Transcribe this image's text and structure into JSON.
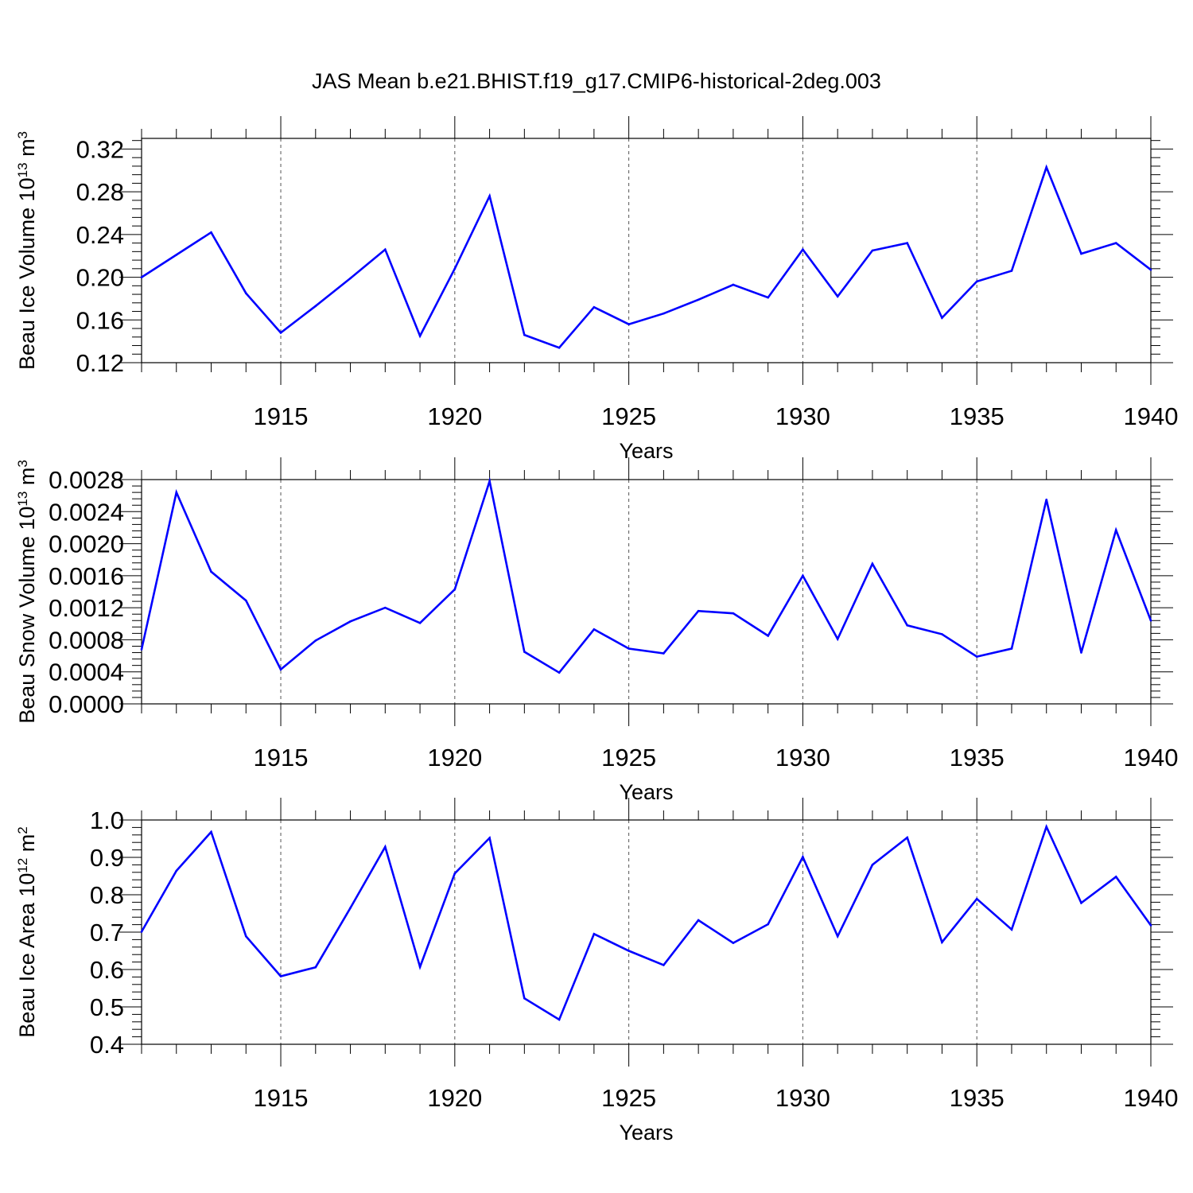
{
  "figure_title": "JAS Mean b.e21.BHIST.f19_g17.CMIP6-historical-2deg.003",
  "chart_data": [
    {
      "type": "line",
      "title": "JAS Mean b.e21.BHIST.f19_g17.CMIP6-historical-2deg.003",
      "xlabel": "Years",
      "ylabel": "Beau Ice Volume 10",
      "ylabel_exp": "13",
      "ylabel_unit": " m",
      "ylabel_unit_exp": "3",
      "xlim": [
        1911,
        1940
      ],
      "ylim": [
        0.12,
        0.33
      ],
      "xticks": [
        1915,
        1920,
        1925,
        1930,
        1935,
        1940
      ],
      "yticks": [
        0.12,
        0.16,
        0.2,
        0.24,
        0.28,
        0.32
      ],
      "ytick_labels": [
        "0.12",
        "0.16",
        "0.20",
        "0.24",
        "0.28",
        "0.32"
      ],
      "ydecimals": 2,
      "grid": "x-dashed",
      "line_color": "#0000ff",
      "series": [
        {
          "name": "Beau Ice Volume",
          "x": [
            1911,
            1912,
            1913,
            1914,
            1915,
            1916,
            1917,
            1918,
            1919,
            1920,
            1921,
            1922,
            1923,
            1924,
            1925,
            1926,
            1927,
            1928,
            1929,
            1930,
            1931,
            1932,
            1933,
            1934,
            1935,
            1936,
            1937,
            1938,
            1939,
            1940
          ],
          "values": [
            0.2,
            0.221,
            0.242,
            0.185,
            0.148,
            0.173,
            0.199,
            0.226,
            0.145,
            0.208,
            0.276,
            0.146,
            0.134,
            0.172,
            0.156,
            0.166,
            0.179,
            0.193,
            0.181,
            0.226,
            0.182,
            0.225,
            0.232,
            0.162,
            0.196,
            0.206,
            0.303,
            0.222,
            0.232,
            0.207
          ]
        }
      ]
    },
    {
      "type": "line",
      "xlabel": "Years",
      "ylabel": "Beau Snow Volume 10",
      "ylabel_exp": "13",
      "ylabel_unit": " m",
      "ylabel_unit_exp": "3",
      "xlim": [
        1911,
        1940
      ],
      "ylim": [
        0.0,
        0.0028
      ],
      "xticks": [
        1915,
        1920,
        1925,
        1930,
        1935,
        1940
      ],
      "yticks": [
        0.0,
        0.0004,
        0.0008,
        0.0012,
        0.0016,
        0.002,
        0.0024,
        0.0028
      ],
      "ytick_labels": [
        "0.0000",
        "0.0004",
        "0.0008",
        "0.0012",
        "0.0016",
        "0.0020",
        "0.0024",
        "0.0028"
      ],
      "ydecimals": 4,
      "grid": "x-dashed",
      "line_color": "#0000ff",
      "series": [
        {
          "name": "Beau Snow Volume",
          "x": [
            1911,
            1912,
            1913,
            1914,
            1915,
            1916,
            1917,
            1918,
            1919,
            1920,
            1921,
            1922,
            1923,
            1924,
            1925,
            1926,
            1927,
            1928,
            1929,
            1930,
            1931,
            1932,
            1933,
            1934,
            1935,
            1936,
            1937,
            1938,
            1939,
            1940
          ],
          "values": [
            0.00068,
            0.00264,
            0.00165,
            0.00129,
            0.00043,
            0.00079,
            0.00103,
            0.0012,
            0.00101,
            0.00143,
            0.00278,
            0.00065,
            0.00039,
            0.00093,
            0.00069,
            0.00063,
            0.00116,
            0.00113,
            0.00085,
            0.0016,
            0.00081,
            0.00175,
            0.00098,
            0.00087,
            0.00059,
            0.00069,
            0.00255,
            0.00064,
            0.00217,
            0.00104
          ]
        }
      ]
    },
    {
      "type": "line",
      "xlabel": "Years",
      "ylabel": "Beau Ice Area 10",
      "ylabel_exp": "12",
      "ylabel_unit": " m",
      "ylabel_unit_exp": "2",
      "xlim": [
        1911,
        1940
      ],
      "ylim": [
        0.4,
        1.0
      ],
      "xticks": [
        1915,
        1920,
        1925,
        1930,
        1935,
        1940
      ],
      "yticks": [
        0.4,
        0.5,
        0.6,
        0.7,
        0.8,
        0.9,
        1.0
      ],
      "ytick_labels": [
        "0.4",
        "0.5",
        "0.6",
        "0.7",
        "0.8",
        "0.9",
        "1.0"
      ],
      "ydecimals": 1,
      "grid": "x-dashed",
      "line_color": "#0000ff",
      "series": [
        {
          "name": "Beau Ice Area",
          "x": [
            1911,
            1912,
            1913,
            1914,
            1915,
            1916,
            1917,
            1918,
            1919,
            1920,
            1921,
            1922,
            1923,
            1924,
            1925,
            1926,
            1927,
            1928,
            1929,
            1930,
            1931,
            1932,
            1933,
            1934,
            1935,
            1936,
            1937,
            1938,
            1939,
            1940
          ],
          "values": [
            0.701,
            0.864,
            0.968,
            0.689,
            0.582,
            0.606,
            0.765,
            0.928,
            0.607,
            0.857,
            0.952,
            0.523,
            0.466,
            0.695,
            0.65,
            0.612,
            0.732,
            0.671,
            0.721,
            0.901,
            0.689,
            0.88,
            0.953,
            0.673,
            0.789,
            0.707,
            0.982,
            0.778,
            0.848,
            0.718
          ]
        }
      ]
    }
  ]
}
